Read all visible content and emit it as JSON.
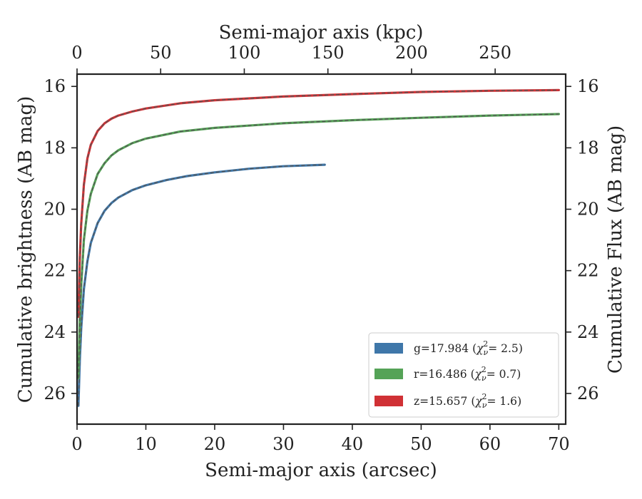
{
  "chart_data": {
    "type": "line",
    "title": "",
    "xlabel": "Semi-major axis (arcsec)",
    "ylabel": "Cumulative brightness (AB mag)",
    "top_xlabel": "Semi-major axis (kpc)",
    "right_ylabel": "Cumulative Flux (AB mag)",
    "xlim": [
      0,
      71
    ],
    "ylim": [
      27,
      15.6
    ],
    "y_inverted": true,
    "grid": false,
    "legend_position": "lower-right",
    "x_ticks": [
      0,
      10,
      20,
      30,
      40,
      50,
      60,
      70
    ],
    "x_tick_labels": [
      "0",
      "10",
      "20",
      "30",
      "40",
      "50",
      "60",
      "70"
    ],
    "y_ticks": [
      16,
      18,
      20,
      22,
      24,
      26
    ],
    "y_tick_labels": [
      "16",
      "18",
      "20",
      "22",
      "24",
      "26"
    ],
    "top_ticks_kpc": [
      0,
      50,
      100,
      150,
      200,
      250
    ],
    "top_tick_labels": [
      "0",
      "50",
      "100",
      "150",
      "200",
      "250"
    ],
    "kpc_per_arcsec": 4.115,
    "model_line_color": "#555555",
    "series": [
      {
        "band": "g",
        "legend": "g=17.984 ",
        "chi2": "= 2.5",
        "color": "#3f77a9",
        "x": [
          0.2,
          0.4,
          0.6,
          1,
          1.5,
          2,
          3,
          4,
          5,
          6,
          8,
          10,
          13,
          16,
          20,
          25,
          30,
          36
        ],
        "y": [
          26.4,
          24.9,
          23.9,
          22.6,
          21.7,
          21.1,
          20.45,
          20.05,
          19.8,
          19.62,
          19.38,
          19.22,
          19.05,
          18.92,
          18.8,
          18.68,
          18.6,
          18.55
        ]
      },
      {
        "band": "r",
        "legend": "r=16.486 ",
        "chi2": "= 0.7",
        "color": "#55a357",
        "x": [
          0.2,
          0.4,
          0.6,
          1,
          1.5,
          2,
          3,
          4,
          5,
          6,
          8,
          10,
          15,
          20,
          30,
          40,
          50,
          60,
          70
        ],
        "y": [
          25.5,
          23.6,
          22.5,
          21.0,
          20.05,
          19.5,
          18.85,
          18.5,
          18.25,
          18.08,
          17.85,
          17.7,
          17.47,
          17.35,
          17.2,
          17.1,
          17.02,
          16.95,
          16.9
        ]
      },
      {
        "band": "z",
        "legend": "z=15.657 ",
        "chi2": "= 1.6",
        "color": "#d03135",
        "x": [
          0.2,
          0.4,
          0.6,
          1,
          1.5,
          2,
          3,
          4,
          5,
          6,
          8,
          10,
          15,
          20,
          30,
          40,
          50,
          60,
          70
        ],
        "y": [
          23.5,
          21.6,
          20.5,
          19.2,
          18.35,
          17.9,
          17.45,
          17.2,
          17.05,
          16.95,
          16.82,
          16.72,
          16.55,
          16.45,
          16.33,
          16.25,
          16.18,
          16.14,
          16.12
        ]
      }
    ]
  }
}
